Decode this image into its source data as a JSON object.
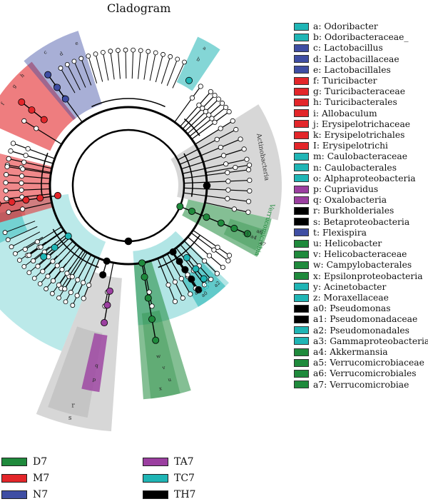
{
  "title": "Cladogram",
  "colors": {
    "D7": "#1f8a3c",
    "M7": "#e3262a",
    "N7": "#3f4ea3",
    "TA7": "#9b3fa0",
    "TC7": "#1fb5b5",
    "TH7": "#000000",
    "gray": "#b7b7b7"
  },
  "groups": [
    {
      "label": "D7",
      "color": "#1f8a3c"
    },
    {
      "label": "M7",
      "color": "#e3262a"
    },
    {
      "label": "N7",
      "color": "#3f4ea3"
    },
    {
      "label": "TA7",
      "color": "#9b3fa0"
    },
    {
      "label": "TC7",
      "color": "#1fb5b5"
    },
    {
      "label": "TH7",
      "color": "#000000"
    }
  ],
  "taxa": [
    {
      "code": "a",
      "text": "a: Odoribacter",
      "group": "TC7"
    },
    {
      "code": "b",
      "text": "b: Odoribacteraceae_",
      "group": "TC7"
    },
    {
      "code": "c",
      "text": "c: Lactobacillus",
      "group": "N7"
    },
    {
      "code": "d",
      "text": "d: Lactobacillaceae",
      "group": "N7"
    },
    {
      "code": "e",
      "text": "e: Lactobacillales",
      "group": "N7"
    },
    {
      "code": "f",
      "text": "f: Turicibacter",
      "group": "M7"
    },
    {
      "code": "g",
      "text": "g: Turicibacteraceae",
      "group": "M7"
    },
    {
      "code": "h",
      "text": "h: Turicibacterales",
      "group": "M7"
    },
    {
      "code": "i",
      "text": "i: Allobaculum",
      "group": "M7"
    },
    {
      "code": "j",
      "text": "j: Erysipelotrichaceae",
      "group": "M7"
    },
    {
      "code": "k",
      "text": "k: Erysipelotrichales",
      "group": "M7"
    },
    {
      "code": "l",
      "text": "I: Erysipelotrichi",
      "group": "M7"
    },
    {
      "code": "m",
      "text": "m: Caulobacteraceae",
      "group": "TC7"
    },
    {
      "code": "n",
      "text": "n: Caulobacterales",
      "group": "TC7"
    },
    {
      "code": "o",
      "text": "o: Alphaproteobacteria",
      "group": "TC7"
    },
    {
      "code": "p",
      "text": "p: Cupriavidus",
      "group": "TA7"
    },
    {
      "code": "q",
      "text": "q: Oxalobacteria",
      "group": "TA7"
    },
    {
      "code": "r",
      "text": "r: Burkholderiales",
      "group": "TH7"
    },
    {
      "code": "s",
      "text": "s: Betaproteobacteria",
      "group": "TH7"
    },
    {
      "code": "t",
      "text": "t: Flexispira",
      "group": "N7"
    },
    {
      "code": "u",
      "text": "u: Helicobacter",
      "group": "D7"
    },
    {
      "code": "v",
      "text": "v: Helicobacteraceae",
      "group": "D7"
    },
    {
      "code": "w",
      "text": "w: Campylobacterales",
      "group": "D7"
    },
    {
      "code": "x",
      "text": "x: Epsilonproteobacteria",
      "group": "D7"
    },
    {
      "code": "y",
      "text": "y: Acinetobacter",
      "group": "TC7"
    },
    {
      "code": "z",
      "text": "z: Moraxellaceae",
      "group": "TC7"
    },
    {
      "code": "a0",
      "text": "a0: Pseudomonas",
      "group": "TH7"
    },
    {
      "code": "a1",
      "text": "a1: Pseudomonadaceae",
      "group": "TH7"
    },
    {
      "code": "a2",
      "text": "a2: Pseudomonadales",
      "group": "TC7"
    },
    {
      "code": "a3",
      "text": "a3: Gammaproteobacteria",
      "group": "TC7"
    },
    {
      "code": "a4",
      "text": "a4: Akkermansia",
      "group": "D7"
    },
    {
      "code": "a5",
      "text": "a5: Verrucomicrobiaceae",
      "group": "D7"
    },
    {
      "code": "a6",
      "text": "a6: Verrucomicrobiales",
      "group": "D7"
    },
    {
      "code": "a7",
      "text": "a7: Verrucomicrobiae",
      "group": "D7"
    }
  ],
  "clade_labels": {
    "actinobacteria": "Actinobacteria",
    "verrucomicrobia": "Verrucomicrobia",
    "o": "o",
    "a3": "a3",
    "r": "r",
    "s": "s"
  }
}
